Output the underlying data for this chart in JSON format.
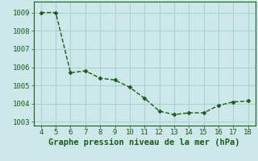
{
  "x": [
    4,
    5,
    6,
    7,
    8,
    9,
    10,
    11,
    12,
    13,
    14,
    15,
    16,
    17,
    18
  ],
  "y": [
    1009.0,
    1009.0,
    1005.7,
    1005.8,
    1005.4,
    1005.3,
    1004.9,
    1004.3,
    1003.6,
    1003.4,
    1003.5,
    1003.5,
    1003.9,
    1004.1,
    1004.15
  ],
  "line_color": "#1a5c1a",
  "marker": "D",
  "marker_size": 2.5,
  "bg_color": "#cce8e8",
  "grid_color": "#aad4d4",
  "spine_color": "#1a5c1a",
  "xlabel": "Graphe pression niveau de la mer (hPa)",
  "xlabel_color": "#1a5c1a",
  "xlabel_fontsize": 7.5,
  "xlim": [
    3.5,
    18.5
  ],
  "ylim": [
    1002.8,
    1009.6
  ],
  "xticks": [
    4,
    5,
    6,
    7,
    8,
    9,
    10,
    11,
    12,
    13,
    14,
    15,
    16,
    17,
    18
  ],
  "yticks": [
    1003,
    1004,
    1005,
    1006,
    1007,
    1008,
    1009
  ],
  "tick_fontsize": 6.5,
  "tick_color": "#1a5c1a",
  "linewidth": 1.0
}
